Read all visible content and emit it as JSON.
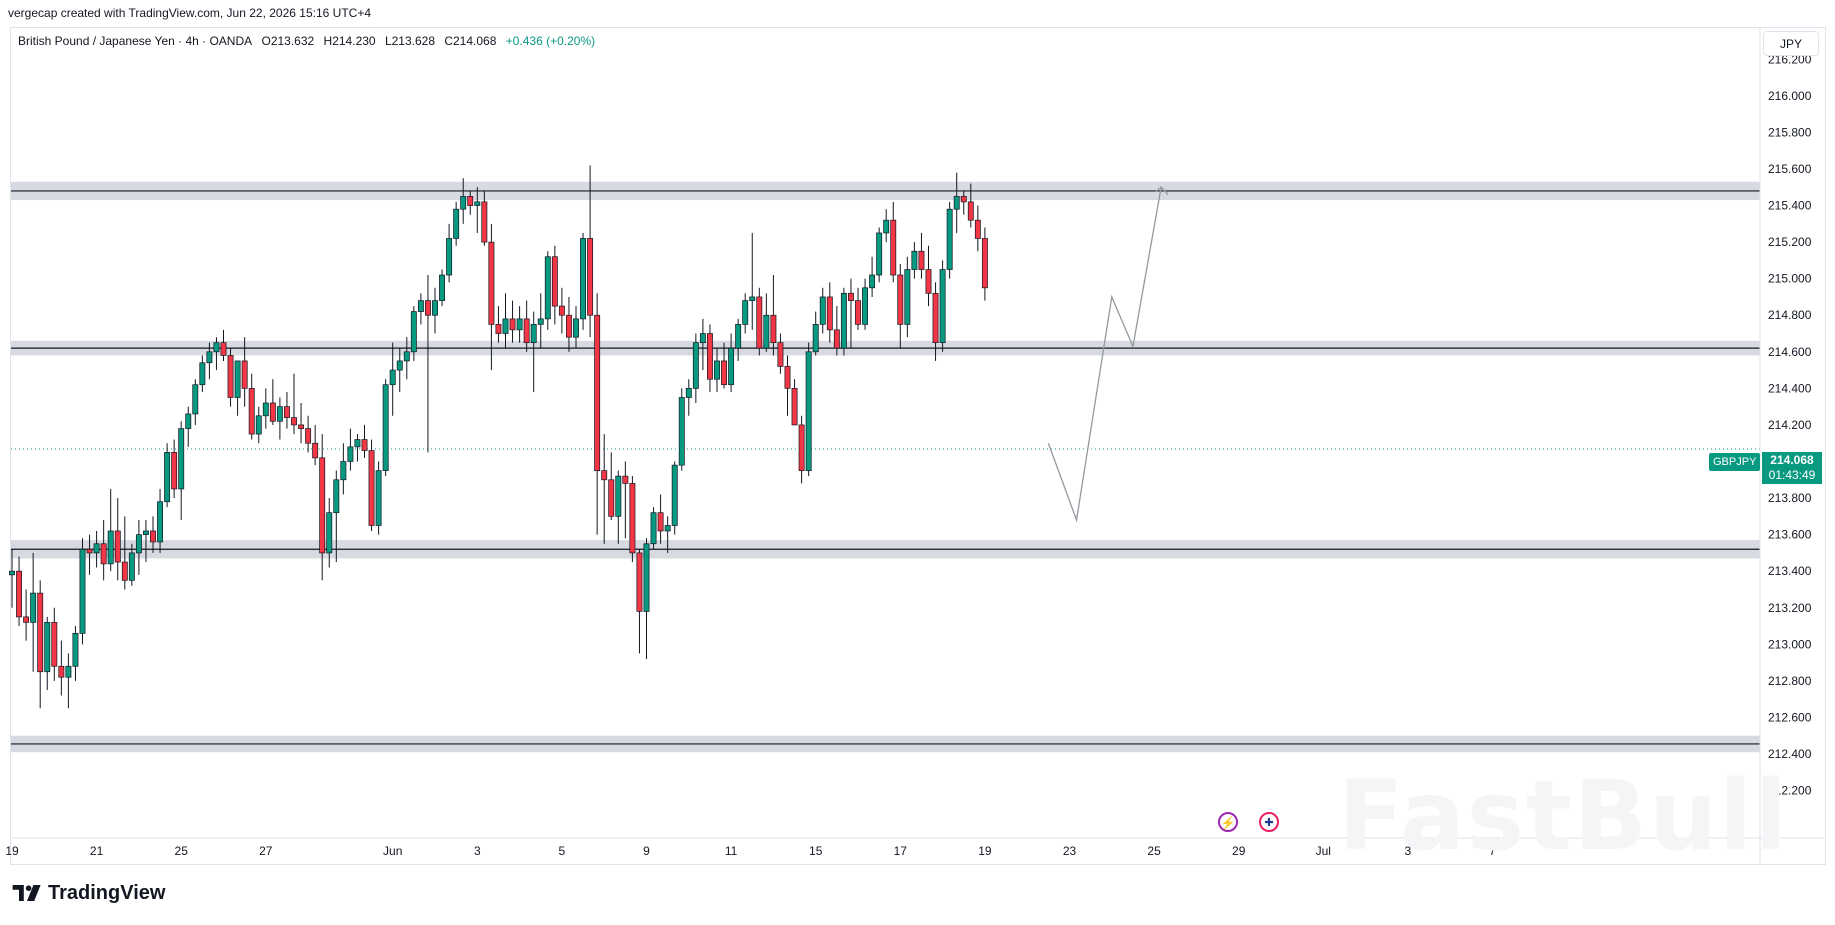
{
  "header": {
    "attribution": "vergecap created with TradingView.com, Jun 22, 2026 15:16 UTC+4"
  },
  "legend": {
    "instrument": "British Pound / Japanese Yen · 4h · OANDA",
    "open": "O213.632",
    "high": "H214.230",
    "low": "L213.628",
    "close": "C214.068",
    "change": "+0.436 (+0.20%)"
  },
  "price_axis": {
    "currency": "JPY",
    "symbol_tag": "GBPJPY",
    "last_price": "214.068",
    "countdown": "01:43:49"
  },
  "event_icons": {
    "flash": "lightning-icon",
    "flag": "uk-flag-icon"
  },
  "footer": {
    "brand": "TradingView"
  },
  "colors": {
    "up": "#089981",
    "down": "#f23645",
    "zone": "#b2b5be",
    "projection": "#9598a1",
    "last_price_line": "#089981"
  },
  "chart_data": {
    "type": "candlestick",
    "timeframe": "4h",
    "ylim": [
      212.05,
      216.3
    ],
    "y_ticks": [
      212.2,
      212.4,
      212.6,
      212.8,
      213.0,
      213.2,
      213.4,
      213.6,
      213.8,
      214.0,
      214.2,
      214.4,
      214.6,
      214.8,
      215.0,
      215.2,
      215.4,
      215.6,
      215.8,
      216.0,
      216.2
    ],
    "y_tick_labels": [
      "212.200",
      "212.400",
      "212.600",
      "212.800",
      "213.000",
      "213.200",
      "213.400",
      "213.600",
      "213.800",
      "214.000",
      "214.200",
      "214.400",
      "214.600",
      "214.800",
      "215.000",
      "215.200",
      "215.400",
      "215.600",
      "215.800",
      "216.000",
      "216.200"
    ],
    "x_axis_labels": [
      {
        "label": "19",
        "bar": 0
      },
      {
        "label": "21",
        "bar": 12
      },
      {
        "label": "25",
        "bar": 24
      },
      {
        "label": "27",
        "bar": 36
      },
      {
        "label": "Jun",
        "bar": 54
      },
      {
        "label": "3",
        "bar": 66
      },
      {
        "label": "5",
        "bar": 78
      },
      {
        "label": "9",
        "bar": 90
      },
      {
        "label": "11",
        "bar": 102
      },
      {
        "label": "15",
        "bar": 114
      },
      {
        "label": "17",
        "bar": 126
      },
      {
        "label": "19",
        "bar": 138
      },
      {
        "label": "23",
        "bar": 150
      },
      {
        "label": "25",
        "bar": 162
      },
      {
        "label": "29",
        "bar": 174
      },
      {
        "label": "Jul",
        "bar": 186
      },
      {
        "label": "3",
        "bar": 198
      },
      {
        "label": "7",
        "bar": 210
      }
    ],
    "zones": [
      {
        "low": 215.43,
        "high": 215.53
      },
      {
        "low": 214.58,
        "high": 214.66
      },
      {
        "low": 213.47,
        "high": 213.57
      },
      {
        "low": 212.41,
        "high": 212.5
      }
    ],
    "last_price": 214.068,
    "projection": [
      {
        "bar": 147,
        "price": 214.1
      },
      {
        "bar": 151,
        "price": 213.68
      },
      {
        "bar": 156,
        "price": 214.9
      },
      {
        "bar": 159,
        "price": 214.63
      },
      {
        "bar": 163,
        "price": 215.5
      },
      {
        "bar": 164,
        "price": 215.46
      }
    ],
    "projection_arrow_tip": {
      "bar": 163,
      "price": 215.5
    },
    "candles": [
      {
        "o": 213.38,
        "h": 213.52,
        "l": 213.2,
        "c": 213.4
      },
      {
        "o": 213.4,
        "h": 213.48,
        "l": 213.1,
        "c": 213.15
      },
      {
        "o": 213.15,
        "h": 213.3,
        "l": 213.02,
        "c": 213.12
      },
      {
        "o": 213.12,
        "h": 213.5,
        "l": 212.85,
        "c": 213.28
      },
      {
        "o": 213.28,
        "h": 213.35,
        "l": 212.65,
        "c": 212.85
      },
      {
        "o": 212.85,
        "h": 213.15,
        "l": 212.75,
        "c": 213.12
      },
      {
        "o": 213.12,
        "h": 213.2,
        "l": 212.8,
        "c": 212.88
      },
      {
        "o": 212.88,
        "h": 213.02,
        "l": 212.72,
        "c": 212.82
      },
      {
        "o": 212.82,
        "h": 212.95,
        "l": 212.65,
        "c": 212.88
      },
      {
        "o": 212.88,
        "h": 213.1,
        "l": 212.8,
        "c": 213.06
      },
      {
        "o": 213.06,
        "h": 213.58,
        "l": 213.0,
        "c": 213.52
      },
      {
        "o": 213.52,
        "h": 213.6,
        "l": 213.38,
        "c": 213.5
      },
      {
        "o": 213.5,
        "h": 213.62,
        "l": 213.42,
        "c": 213.55
      },
      {
        "o": 213.55,
        "h": 213.68,
        "l": 213.35,
        "c": 213.44
      },
      {
        "o": 213.44,
        "h": 213.85,
        "l": 213.4,
        "c": 213.62
      },
      {
        "o": 213.62,
        "h": 213.8,
        "l": 213.35,
        "c": 213.45
      },
      {
        "o": 213.45,
        "h": 213.7,
        "l": 213.3,
        "c": 213.35
      },
      {
        "o": 213.35,
        "h": 213.55,
        "l": 213.32,
        "c": 213.5
      },
      {
        "o": 213.5,
        "h": 213.68,
        "l": 213.38,
        "c": 213.6
      },
      {
        "o": 213.6,
        "h": 213.68,
        "l": 213.45,
        "c": 213.62
      },
      {
        "o": 213.62,
        "h": 213.7,
        "l": 213.5,
        "c": 213.56
      },
      {
        "o": 213.56,
        "h": 213.85,
        "l": 213.5,
        "c": 213.78
      },
      {
        "o": 213.78,
        "h": 214.1,
        "l": 213.75,
        "c": 214.05
      },
      {
        "o": 214.05,
        "h": 214.12,
        "l": 213.8,
        "c": 213.85
      },
      {
        "o": 213.85,
        "h": 214.22,
        "l": 213.68,
        "c": 214.18
      },
      {
        "o": 214.18,
        "h": 214.3,
        "l": 214.08,
        "c": 214.26
      },
      {
        "o": 214.26,
        "h": 214.45,
        "l": 214.2,
        "c": 214.42
      },
      {
        "o": 214.42,
        "h": 214.58,
        "l": 214.38,
        "c": 214.54
      },
      {
        "o": 214.54,
        "h": 214.65,
        "l": 214.45,
        "c": 214.6
      },
      {
        "o": 214.6,
        "h": 214.68,
        "l": 214.5,
        "c": 214.65
      },
      {
        "o": 214.65,
        "h": 214.72,
        "l": 214.55,
        "c": 214.58
      },
      {
        "o": 214.58,
        "h": 214.62,
        "l": 214.3,
        "c": 214.35
      },
      {
        "o": 214.35,
        "h": 214.55,
        "l": 214.25,
        "c": 214.55
      },
      {
        "o": 214.55,
        "h": 214.68,
        "l": 214.3,
        "c": 214.4
      },
      {
        "o": 214.4,
        "h": 214.48,
        "l": 214.12,
        "c": 214.15
      },
      {
        "o": 214.15,
        "h": 214.3,
        "l": 214.1,
        "c": 214.25
      },
      {
        "o": 214.25,
        "h": 214.4,
        "l": 214.18,
        "c": 214.32
      },
      {
        "o": 214.32,
        "h": 214.45,
        "l": 214.2,
        "c": 214.22
      },
      {
        "o": 214.22,
        "h": 214.35,
        "l": 214.12,
        "c": 214.3
      },
      {
        "o": 214.3,
        "h": 214.38,
        "l": 214.18,
        "c": 214.24
      },
      {
        "o": 214.24,
        "h": 214.48,
        "l": 214.15,
        "c": 214.2
      },
      {
        "o": 214.2,
        "h": 214.32,
        "l": 214.1,
        "c": 214.18
      },
      {
        "o": 214.18,
        "h": 214.25,
        "l": 214.05,
        "c": 214.1
      },
      {
        "o": 214.1,
        "h": 214.2,
        "l": 213.98,
        "c": 214.02
      },
      {
        "o": 214.02,
        "h": 214.15,
        "l": 213.35,
        "c": 213.5
      },
      {
        "o": 213.5,
        "h": 213.8,
        "l": 213.42,
        "c": 213.72
      },
      {
        "o": 213.72,
        "h": 213.95,
        "l": 213.45,
        "c": 213.9
      },
      {
        "o": 213.9,
        "h": 214.1,
        "l": 213.82,
        "c": 214.0
      },
      {
        "o": 214.0,
        "h": 214.18,
        "l": 213.95,
        "c": 214.08
      },
      {
        "o": 214.08,
        "h": 214.15,
        "l": 214.0,
        "c": 214.12
      },
      {
        "o": 214.12,
        "h": 214.2,
        "l": 214.02,
        "c": 214.06
      },
      {
        "o": 214.06,
        "h": 214.12,
        "l": 213.62,
        "c": 213.65
      },
      {
        "o": 213.65,
        "h": 214.0,
        "l": 213.6,
        "c": 213.95
      },
      {
        "o": 213.95,
        "h": 214.45,
        "l": 213.92,
        "c": 214.42
      },
      {
        "o": 214.42,
        "h": 214.65,
        "l": 214.25,
        "c": 214.5
      },
      {
        "o": 214.5,
        "h": 214.62,
        "l": 214.38,
        "c": 214.55
      },
      {
        "o": 214.55,
        "h": 214.68,
        "l": 214.45,
        "c": 214.6
      },
      {
        "o": 214.6,
        "h": 214.85,
        "l": 214.55,
        "c": 214.82
      },
      {
        "o": 214.82,
        "h": 214.92,
        "l": 214.75,
        "c": 214.88
      },
      {
        "o": 214.88,
        "h": 215.02,
        "l": 214.05,
        "c": 214.8
      },
      {
        "o": 214.8,
        "h": 214.95,
        "l": 214.7,
        "c": 214.88
      },
      {
        "o": 214.88,
        "h": 215.05,
        "l": 214.85,
        "c": 215.02
      },
      {
        "o": 215.02,
        "h": 215.3,
        "l": 214.98,
        "c": 215.22
      },
      {
        "o": 215.22,
        "h": 215.42,
        "l": 215.18,
        "c": 215.38
      },
      {
        "o": 215.38,
        "h": 215.55,
        "l": 215.3,
        "c": 215.45
      },
      {
        "o": 215.45,
        "h": 215.48,
        "l": 215.35,
        "c": 215.4
      },
      {
        "o": 215.4,
        "h": 215.5,
        "l": 215.25,
        "c": 215.42
      },
      {
        "o": 215.42,
        "h": 215.48,
        "l": 215.18,
        "c": 215.2
      },
      {
        "o": 215.2,
        "h": 215.3,
        "l": 214.5,
        "c": 214.75
      },
      {
        "o": 214.75,
        "h": 214.85,
        "l": 214.65,
        "c": 214.7
      },
      {
        "o": 214.7,
        "h": 214.92,
        "l": 214.62,
        "c": 214.78
      },
      {
        "o": 214.78,
        "h": 214.88,
        "l": 214.65,
        "c": 214.72
      },
      {
        "o": 214.72,
        "h": 214.85,
        "l": 214.65,
        "c": 214.78
      },
      {
        "o": 214.78,
        "h": 214.88,
        "l": 214.6,
        "c": 214.65
      },
      {
        "o": 214.65,
        "h": 214.82,
        "l": 214.38,
        "c": 214.75
      },
      {
        "o": 214.75,
        "h": 214.92,
        "l": 214.62,
        "c": 214.78
      },
      {
        "o": 214.78,
        "h": 215.15,
        "l": 214.72,
        "c": 215.12
      },
      {
        "o": 215.12,
        "h": 215.18,
        "l": 214.75,
        "c": 214.85
      },
      {
        "o": 214.85,
        "h": 214.95,
        "l": 214.7,
        "c": 214.8
      },
      {
        "o": 214.8,
        "h": 214.9,
        "l": 214.6,
        "c": 214.68
      },
      {
        "o": 214.68,
        "h": 214.85,
        "l": 214.62,
        "c": 214.78
      },
      {
        "o": 214.78,
        "h": 215.25,
        "l": 214.72,
        "c": 215.22
      },
      {
        "o": 215.22,
        "h": 215.62,
        "l": 214.68,
        "c": 214.8
      },
      {
        "o": 214.8,
        "h": 214.92,
        "l": 213.6,
        "c": 213.95
      },
      {
        "o": 213.95,
        "h": 214.15,
        "l": 213.55,
        "c": 213.9
      },
      {
        "o": 213.9,
        "h": 214.05,
        "l": 213.68,
        "c": 213.7
      },
      {
        "o": 213.7,
        "h": 213.95,
        "l": 213.55,
        "c": 213.92
      },
      {
        "o": 213.92,
        "h": 214.0,
        "l": 213.58,
        "c": 213.88
      },
      {
        "o": 213.88,
        "h": 213.92,
        "l": 213.45,
        "c": 213.5
      },
      {
        "o": 213.5,
        "h": 213.52,
        "l": 212.95,
        "c": 213.18
      },
      {
        "o": 213.18,
        "h": 213.58,
        "l": 212.92,
        "c": 213.55
      },
      {
        "o": 213.55,
        "h": 213.75,
        "l": 213.52,
        "c": 213.72
      },
      {
        "o": 213.72,
        "h": 213.82,
        "l": 213.55,
        "c": 213.62
      },
      {
        "o": 213.62,
        "h": 213.7,
        "l": 213.5,
        "c": 213.65
      },
      {
        "o": 213.65,
        "h": 214.0,
        "l": 213.6,
        "c": 213.98
      },
      {
        "o": 213.98,
        "h": 214.4,
        "l": 213.95,
        "c": 214.35
      },
      {
        "o": 214.35,
        "h": 214.45,
        "l": 214.25,
        "c": 214.4
      },
      {
        "o": 214.4,
        "h": 214.7,
        "l": 214.32,
        "c": 214.65
      },
      {
        "o": 214.65,
        "h": 214.78,
        "l": 214.5,
        "c": 214.7
      },
      {
        "o": 214.7,
        "h": 214.75,
        "l": 214.38,
        "c": 214.45
      },
      {
        "o": 214.45,
        "h": 214.62,
        "l": 214.38,
        "c": 214.55
      },
      {
        "o": 214.55,
        "h": 214.65,
        "l": 214.4,
        "c": 214.42
      },
      {
        "o": 214.42,
        "h": 214.7,
        "l": 214.38,
        "c": 214.62
      },
      {
        "o": 214.62,
        "h": 214.78,
        "l": 214.55,
        "c": 214.75
      },
      {
        "o": 214.75,
        "h": 214.92,
        "l": 214.7,
        "c": 214.88
      },
      {
        "o": 214.88,
        "h": 215.25,
        "l": 214.72,
        "c": 214.9
      },
      {
        "o": 214.9,
        "h": 214.95,
        "l": 214.58,
        "c": 214.62
      },
      {
        "o": 214.62,
        "h": 214.92,
        "l": 214.6,
        "c": 214.8
      },
      {
        "o": 214.8,
        "h": 215.02,
        "l": 214.58,
        "c": 214.65
      },
      {
        "o": 214.65,
        "h": 214.7,
        "l": 214.48,
        "c": 214.52
      },
      {
        "o": 214.52,
        "h": 214.58,
        "l": 214.25,
        "c": 214.4
      },
      {
        "o": 214.4,
        "h": 214.45,
        "l": 214.2,
        "c": 214.2
      },
      {
        "o": 214.2,
        "h": 214.25,
        "l": 213.88,
        "c": 213.95
      },
      {
        "o": 213.95,
        "h": 214.65,
        "l": 213.92,
        "c": 214.6
      },
      {
        "o": 214.6,
        "h": 214.82,
        "l": 214.58,
        "c": 214.75
      },
      {
        "o": 214.75,
        "h": 214.95,
        "l": 214.7,
        "c": 214.9
      },
      {
        "o": 214.9,
        "h": 214.98,
        "l": 214.65,
        "c": 214.72
      },
      {
        "o": 214.72,
        "h": 214.85,
        "l": 214.58,
        "c": 214.62
      },
      {
        "o": 214.62,
        "h": 214.95,
        "l": 214.58,
        "c": 214.92
      },
      {
        "o": 214.92,
        "h": 215.0,
        "l": 214.62,
        "c": 214.88
      },
      {
        "o": 214.88,
        "h": 214.95,
        "l": 214.72,
        "c": 214.75
      },
      {
        "o": 214.75,
        "h": 215.0,
        "l": 214.72,
        "c": 214.95
      },
      {
        "o": 214.95,
        "h": 215.12,
        "l": 214.9,
        "c": 215.02
      },
      {
        "o": 215.02,
        "h": 215.28,
        "l": 214.98,
        "c": 215.25
      },
      {
        "o": 215.25,
        "h": 215.38,
        "l": 215.2,
        "c": 215.32
      },
      {
        "o": 215.32,
        "h": 215.42,
        "l": 214.98,
        "c": 215.02
      },
      {
        "o": 215.02,
        "h": 215.08,
        "l": 214.62,
        "c": 214.75
      },
      {
        "o": 214.75,
        "h": 215.12,
        "l": 214.68,
        "c": 215.05
      },
      {
        "o": 215.05,
        "h": 215.2,
        "l": 215.0,
        "c": 215.15
      },
      {
        "o": 215.15,
        "h": 215.25,
        "l": 215.0,
        "c": 215.05
      },
      {
        "o": 215.05,
        "h": 215.18,
        "l": 214.85,
        "c": 214.92
      },
      {
        "o": 214.92,
        "h": 214.98,
        "l": 214.55,
        "c": 214.65
      },
      {
        "o": 214.65,
        "h": 215.1,
        "l": 214.6,
        "c": 215.05
      },
      {
        "o": 215.05,
        "h": 215.42,
        "l": 215.0,
        "c": 215.38
      },
      {
        "o": 215.38,
        "h": 215.58,
        "l": 215.25,
        "c": 215.45
      },
      {
        "o": 215.45,
        "h": 215.48,
        "l": 215.35,
        "c": 215.42
      },
      {
        "o": 215.42,
        "h": 215.52,
        "l": 215.28,
        "c": 215.32
      },
      {
        "o": 215.32,
        "h": 215.4,
        "l": 215.15,
        "c": 215.22
      },
      {
        "o": 215.22,
        "h": 215.28,
        "l": 214.88,
        "c": 214.95
      }
    ]
  }
}
